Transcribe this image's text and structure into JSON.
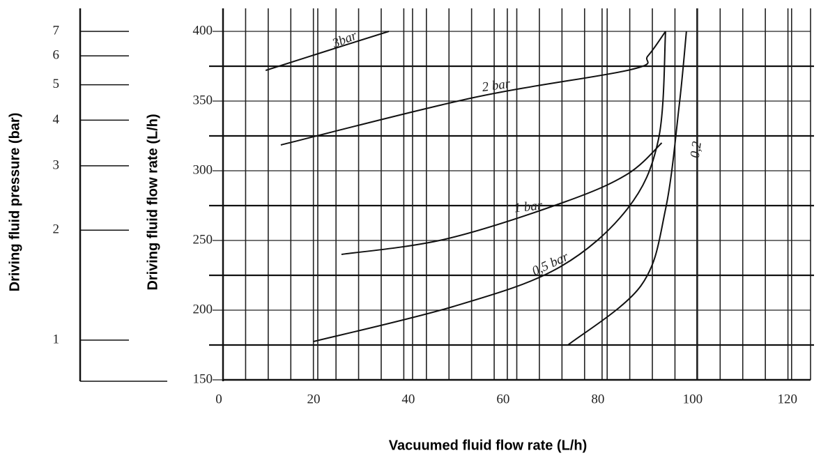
{
  "chart_data": {
    "type": "line",
    "x_label": "Vacuumed fluid flow rate (L/h)",
    "y_label": "Driving fluid flow rate (L/h)",
    "y2_label": "Driving fluid pressure (bar)",
    "xlim": [
      0,
      124
    ],
    "xticks": [
      0,
      20,
      40,
      60,
      80,
      100,
      120
    ],
    "ylim": [
      150,
      400
    ],
    "yticks": [
      150,
      200,
      250,
      300,
      350,
      400
    ],
    "y2lim": [
      1,
      7
    ],
    "y2ticks": [
      1,
      2,
      3,
      4,
      5,
      6,
      7
    ],
    "y2_log": true,
    "grid": true,
    "color": "#111111",
    "series": [
      {
        "name": "3bar",
        "color": "#111111",
        "x": [
          9,
          21,
          35
        ],
        "values": [
          372,
          385,
          400
        ]
      },
      {
        "name": "2 bar",
        "color": "#111111",
        "x": [
          12.2,
          52.9,
          86,
          89.7,
          93.4
        ],
        "values": [
          318.5,
          352.5,
          372.5,
          382.5,
          400
        ]
      },
      {
        "name": "1 bar",
        "color": "#111111",
        "x": [
          25,
          47,
          72,
          85.3,
          92.6
        ],
        "values": [
          240,
          251,
          277.5,
          297.5,
          320
        ]
      },
      {
        "name": "0,5 bar",
        "color": "#111111",
        "x": [
          19.1,
          48.5,
          70.6,
          85.3,
          91.9,
          93.4
        ],
        "values": [
          177.5,
          202.5,
          230,
          272.5,
          322.5,
          400
        ]
      },
      {
        "name": "0,2",
        "color": "#111111",
        "x": [
          72.8,
          88.2,
          93.4,
          96.3,
          97.8
        ],
        "values": [
          175,
          217.5,
          272.5,
          347.5,
          400
        ]
      }
    ]
  }
}
